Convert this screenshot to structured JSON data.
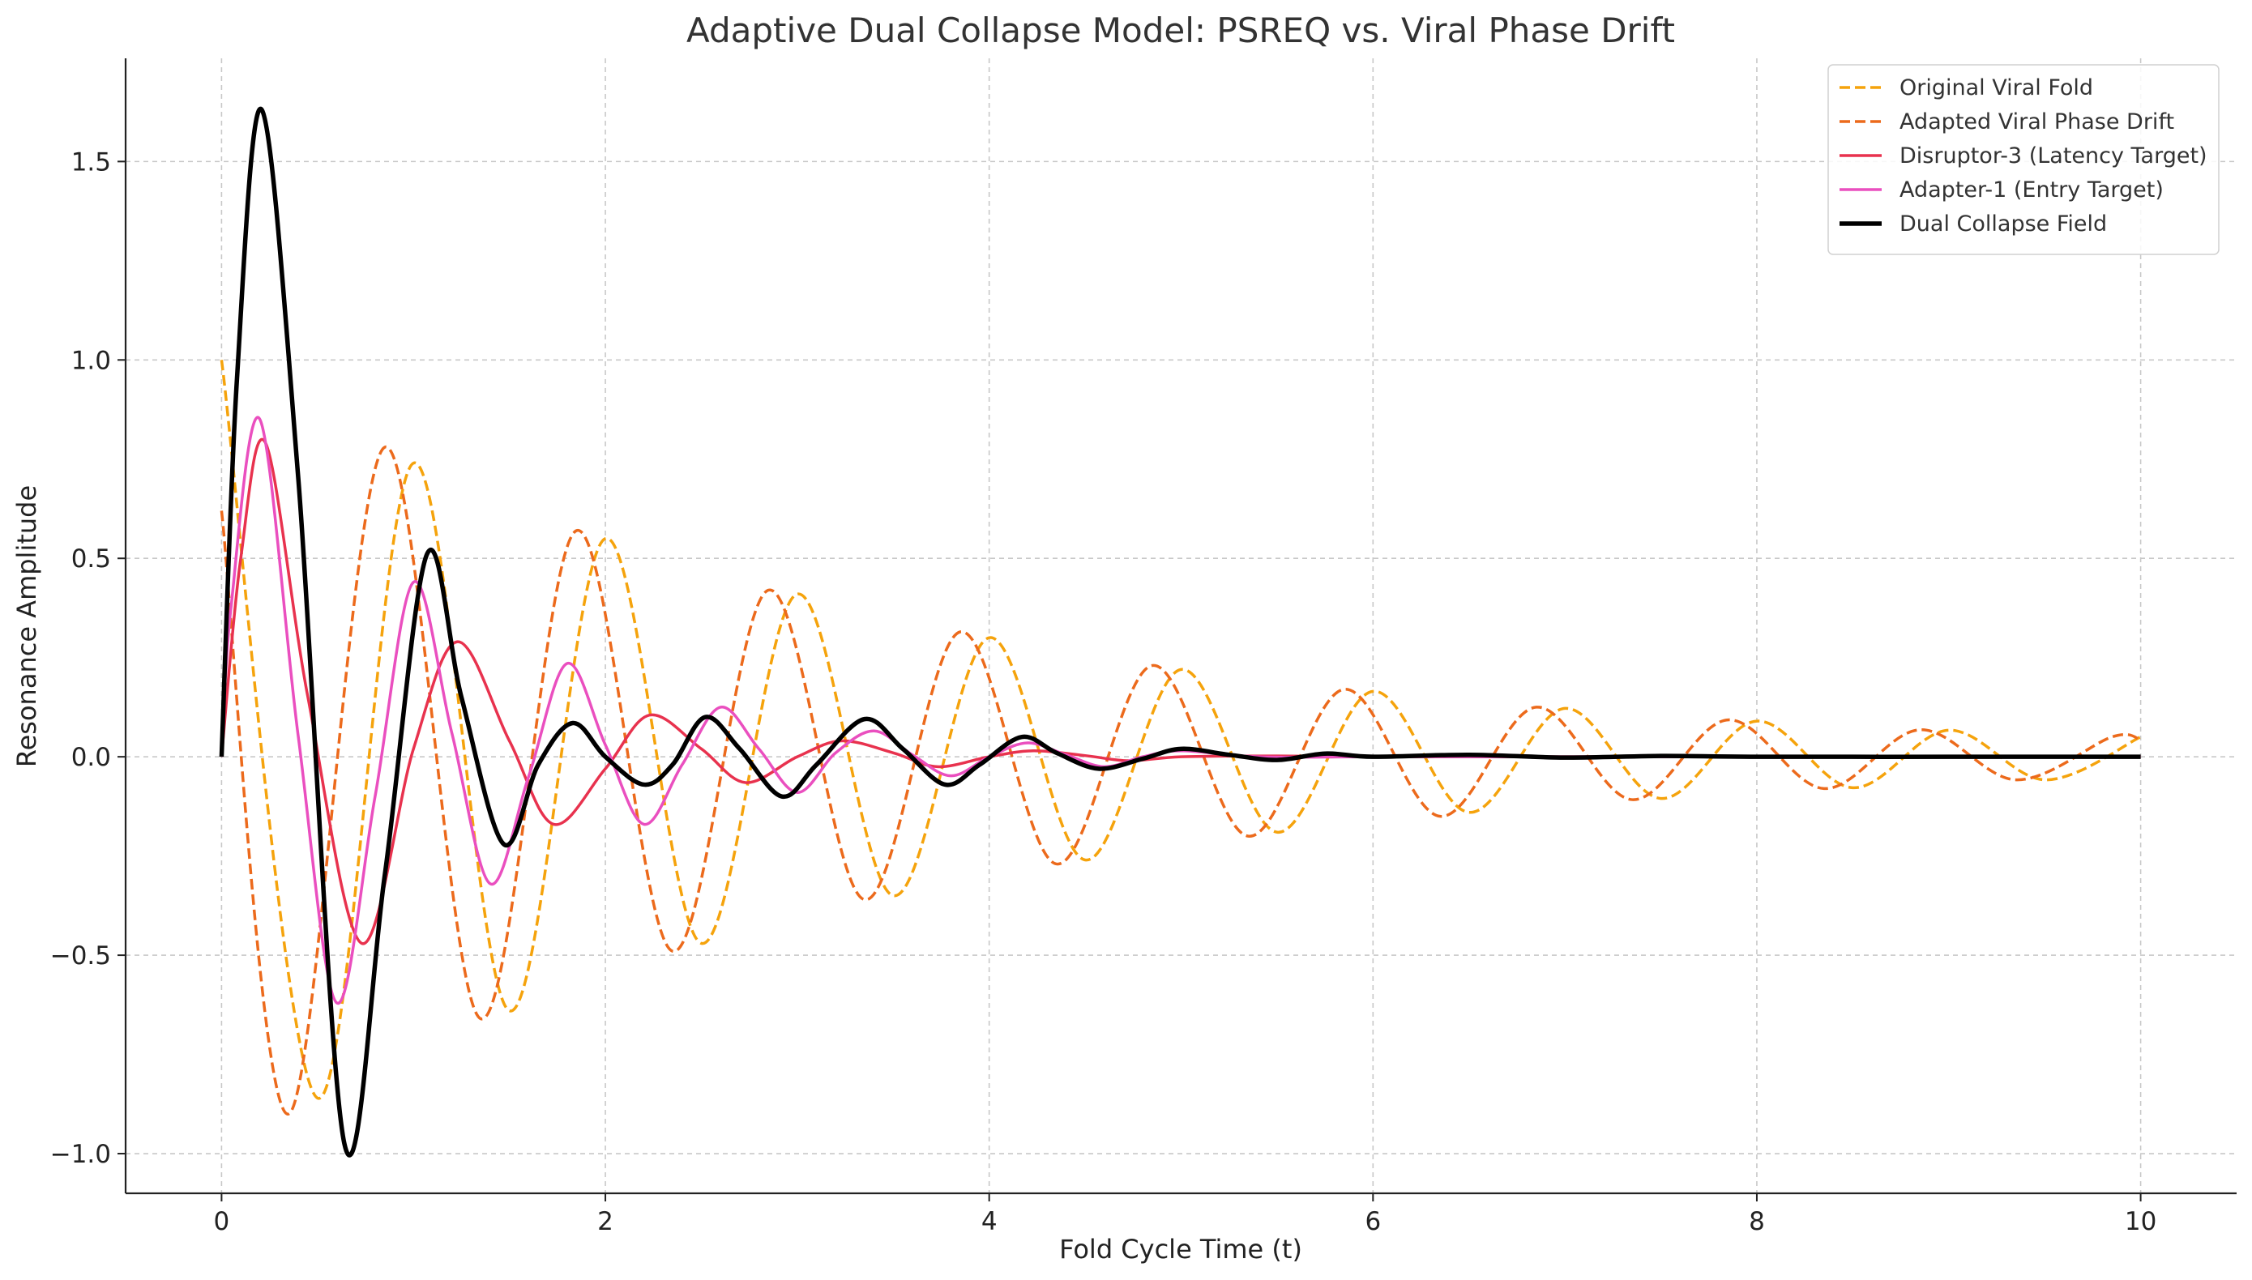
{
  "chart_data": {
    "type": "line",
    "title": "Adaptive Dual Collapse Model: PSREQ vs. Viral Phase Drift",
    "xlabel": "Fold Cycle Time (t)",
    "ylabel": "Resonance Amplitude",
    "xlim": [
      -0.5,
      10.5
    ],
    "ylim": [
      -1.1,
      1.76
    ],
    "xticks": [
      0,
      2,
      4,
      6,
      8,
      10
    ],
    "yticks": [
      -1.0,
      -0.5,
      0.0,
      0.5,
      1.0,
      1.5
    ],
    "xtick_labels": [
      "0",
      "2",
      "4",
      "6",
      "8",
      "10"
    ],
    "ytick_labels": [
      "−1.0",
      "−0.5",
      "0.0",
      "0.5",
      "1.0",
      "1.5"
    ],
    "grid": true,
    "legend_position": "top-right",
    "series": [
      {
        "name": "Original Viral Fold",
        "color": "#f5a30c",
        "dashed": true,
        "width": 3.5,
        "x": [
          0,
          0.5,
          1.0,
          1.5,
          2.0,
          2.5,
          3.0,
          3.5,
          4.0,
          4.5,
          5.0,
          5.5,
          6.0,
          6.5,
          7.0,
          7.5,
          8.0,
          8.5,
          9.0,
          9.5,
          10.0
        ],
        "y": [
          1.0,
          -0.86,
          0.74,
          -0.64,
          0.55,
          -0.47,
          0.41,
          -0.35,
          0.3,
          -0.26,
          0.22,
          -0.19,
          0.165,
          -0.14,
          0.122,
          -0.105,
          0.09,
          -0.078,
          0.067,
          -0.058,
          0.05
        ]
      },
      {
        "name": "Adapted Viral Phase Drift",
        "color": "#ec6a1c",
        "dashed": true,
        "width": 3.5,
        "x": [
          0,
          0.35,
          0.85,
          1.35,
          1.85,
          2.35,
          2.85,
          3.35,
          3.85,
          4.35,
          4.85,
          5.35,
          5.85,
          6.35,
          6.85,
          7.35,
          7.85,
          8.35,
          8.85,
          9.35,
          9.85,
          10.0
        ],
        "y": [
          0.62,
          -0.9,
          0.78,
          -0.66,
          0.57,
          -0.49,
          0.42,
          -0.36,
          0.315,
          -0.27,
          0.23,
          -0.2,
          0.17,
          -0.15,
          0.125,
          -0.108,
          0.093,
          -0.08,
          0.068,
          -0.058,
          0.05,
          0.043
        ]
      },
      {
        "name": "Disruptor-3 (Latency Target)",
        "color": "#e8324e",
        "dashed": false,
        "width": 3.5,
        "x": [
          0,
          0.1,
          0.23,
          0.45,
          0.73,
          1.0,
          1.23,
          1.5,
          1.73,
          2.0,
          2.23,
          2.5,
          2.73,
          3.0,
          3.23,
          3.5,
          3.73,
          4.0,
          4.23,
          4.5,
          4.73,
          5.0,
          5.5,
          6.0,
          7.0,
          8.0,
          10.0
        ],
        "y": [
          0,
          0.5,
          0.79,
          0.15,
          -0.47,
          0.02,
          0.29,
          0.04,
          -0.17,
          -0.03,
          0.105,
          0.02,
          -0.065,
          0.0,
          0.04,
          0.01,
          -0.025,
          0.0,
          0.015,
          0.003,
          -0.01,
          0.0,
          0.002,
          0.0,
          0.0,
          0.0,
          0.0
        ]
      },
      {
        "name": "Adapter-1 (Entry Target)",
        "color": "#ea4fbf",
        "dashed": false,
        "width": 3.5,
        "x": [
          0,
          0.05,
          0.2,
          0.4,
          0.6,
          0.8,
          1.0,
          1.2,
          1.4,
          1.6,
          1.8,
          2.0,
          2.2,
          2.4,
          2.6,
          2.8,
          3.0,
          3.2,
          3.4,
          3.6,
          3.8,
          4.0,
          4.2,
          4.4,
          4.6,
          4.8,
          5.0,
          5.4,
          6.0,
          7.0,
          8.0,
          10.0
        ],
        "y": [
          0,
          0.38,
          0.85,
          0.05,
          -0.62,
          -0.1,
          0.44,
          0.06,
          -0.32,
          -0.05,
          0.235,
          0.03,
          -0.17,
          -0.02,
          0.125,
          0.02,
          -0.09,
          0.01,
          0.065,
          0.005,
          -0.048,
          0.0,
          0.035,
          0.005,
          -0.025,
          0.0,
          0.015,
          0.0,
          0.0,
          0.0,
          0.0,
          0.0
        ]
      },
      {
        "name": "Dual Collapse Field",
        "color": "#000000",
        "dashed": false,
        "width": 5.5,
        "x": [
          0,
          0.08,
          0.21,
          0.4,
          0.64,
          0.85,
          1.07,
          1.25,
          1.47,
          1.65,
          1.83,
          2.0,
          2.2,
          2.35,
          2.52,
          2.7,
          2.92,
          3.1,
          3.35,
          3.55,
          3.77,
          3.95,
          4.17,
          4.35,
          4.57,
          4.8,
          5.0,
          5.25,
          5.5,
          5.75,
          6.0,
          6.5,
          7.0,
          7.5,
          8.0,
          9.0,
          10.0
        ],
        "y": [
          0,
          0.95,
          1.63,
          0.7,
          -0.975,
          -0.3,
          0.51,
          0.15,
          -0.22,
          -0.02,
          0.085,
          0.0,
          -0.07,
          -0.02,
          0.1,
          0.02,
          -0.1,
          -0.02,
          0.095,
          0.02,
          -0.07,
          -0.02,
          0.05,
          0.01,
          -0.03,
          -0.005,
          0.02,
          0.005,
          -0.008,
          0.008,
          0.0,
          0.005,
          -0.002,
          0.002,
          0.0,
          0.0,
          0.0
        ]
      }
    ]
  }
}
